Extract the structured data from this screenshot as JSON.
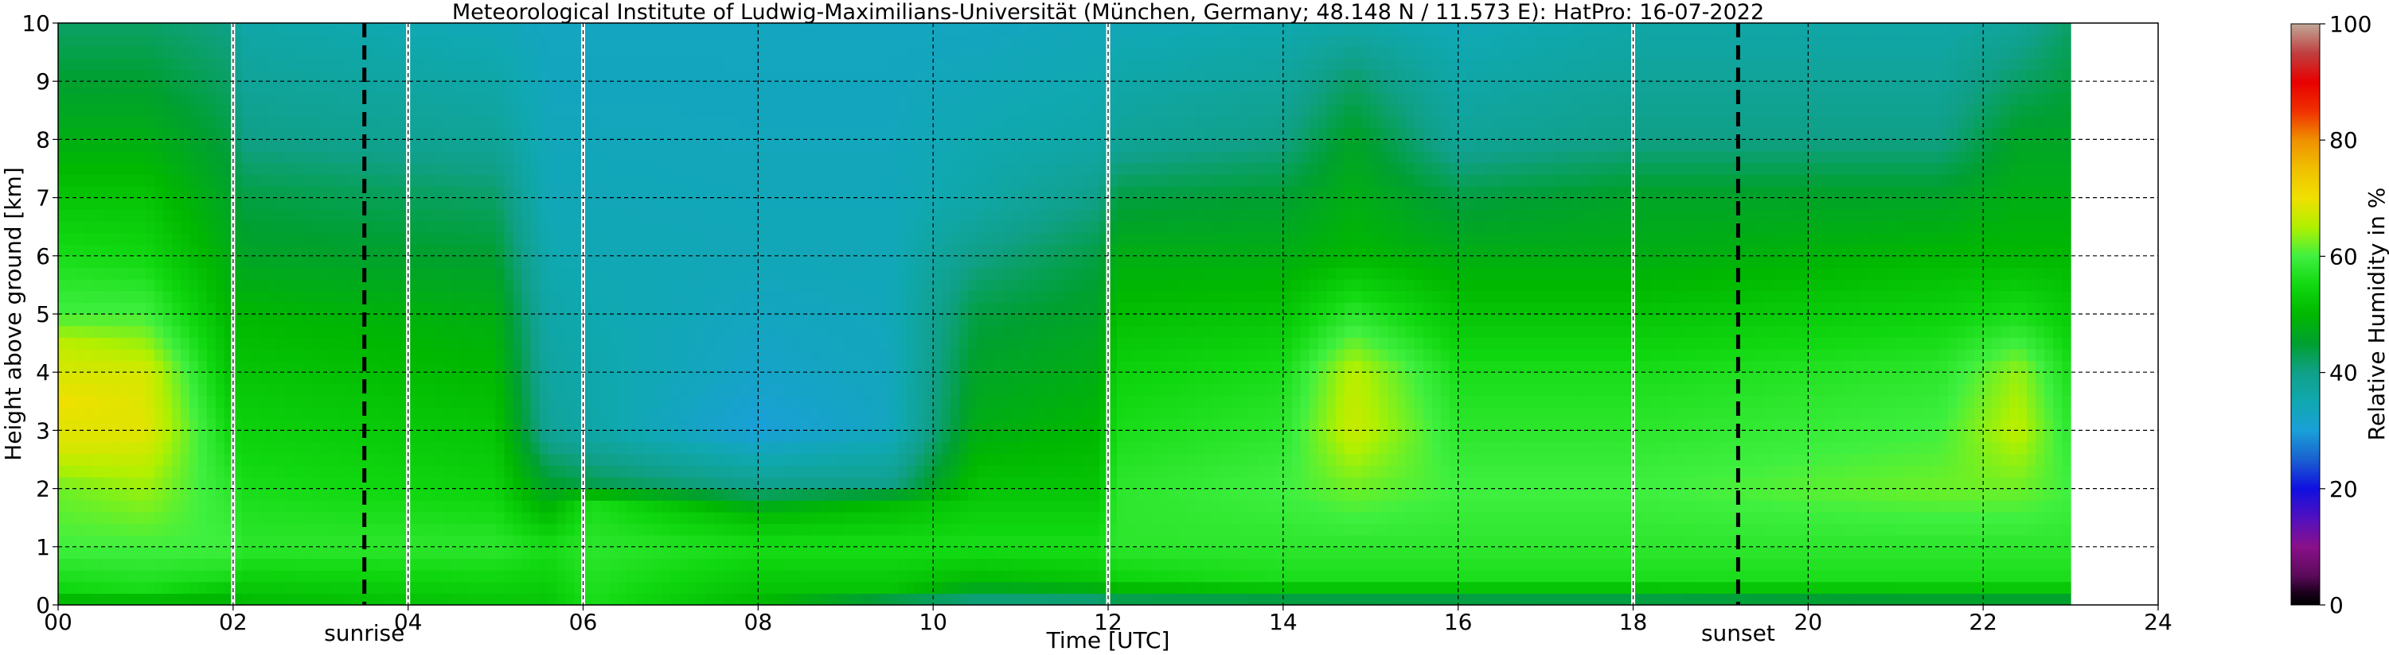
{
  "chart_data": {
    "type": "heatmap",
    "title": "Meteorological Institute of Ludwig-Maximilians-Universität (München, Germany; 48.148 N / 11.573 E):    HatPro: 16-07-2022",
    "xlabel": "Time [UTC]",
    "ylabel": "Height above ground [km]",
    "colorbar_label": "Relative Humidity in %",
    "xlim": [
      0,
      24
    ],
    "ylim": [
      0,
      10
    ],
    "x_ticks": [
      "00",
      "02",
      "04",
      "06",
      "08",
      "10",
      "12",
      "14",
      "16",
      "18",
      "20",
      "22",
      "24"
    ],
    "y_ticks": [
      "0",
      "1",
      "2",
      "3",
      "4",
      "5",
      "6",
      "7",
      "8",
      "9",
      "10"
    ],
    "colorbar_ticks": [
      "0",
      "20",
      "40",
      "60",
      "80",
      "100"
    ],
    "colorbar_range": [
      0,
      100
    ],
    "grid": true,
    "data_x_range": [
      0,
      23
    ],
    "missing_data_gaps_hours": [
      2.0,
      4.0,
      6.0,
      12.0,
      18.0
    ],
    "events": [
      {
        "label": "sunrise",
        "time_hours": 3.5
      },
      {
        "label": "sunset",
        "time_hours": 19.2
      }
    ],
    "colorbar_stops": [
      {
        "value": 0,
        "color": "#000000"
      },
      {
        "value": 2,
        "color": "#1a001a"
      },
      {
        "value": 5,
        "color": "#5a0a5a"
      },
      {
        "value": 10,
        "color": "#8a108a"
      },
      {
        "value": 15,
        "color": "#5010c0"
      },
      {
        "value": 20,
        "color": "#1010e0"
      },
      {
        "value": 25,
        "color": "#1a60d0"
      },
      {
        "value": 30,
        "color": "#1aa0d8"
      },
      {
        "value": 35,
        "color": "#10a8b0"
      },
      {
        "value": 40,
        "color": "#10a088"
      },
      {
        "value": 45,
        "color": "#00a030"
      },
      {
        "value": 50,
        "color": "#00b800"
      },
      {
        "value": 55,
        "color": "#10d810"
      },
      {
        "value": 60,
        "color": "#40f040"
      },
      {
        "value": 65,
        "color": "#b0f000"
      },
      {
        "value": 70,
        "color": "#f0e000"
      },
      {
        "value": 75,
        "color": "#f0c000"
      },
      {
        "value": 80,
        "color": "#f09000"
      },
      {
        "value": 85,
        "color": "#f03000"
      },
      {
        "value": 90,
        "color": "#e80000"
      },
      {
        "value": 95,
        "color": "#c04040"
      },
      {
        "value": 100,
        "color": "#c0a898"
      }
    ],
    "humidity_profiles": [
      {
        "x": 0.0,
        "levels": [
          {
            "h": 0,
            "rh": 48
          },
          {
            "h": 0.3,
            "rh": 55
          },
          {
            "h": 1,
            "rh": 60
          },
          {
            "h": 2,
            "rh": 62
          },
          {
            "h": 2.7,
            "rh": 68
          },
          {
            "h": 3.5,
            "rh": 70
          },
          {
            "h": 4.5,
            "rh": 66
          },
          {
            "h": 5,
            "rh": 60
          },
          {
            "h": 6,
            "rh": 56
          },
          {
            "h": 7,
            "rh": 52
          },
          {
            "h": 8,
            "rh": 48
          },
          {
            "h": 9,
            "rh": 45
          },
          {
            "h": 10,
            "rh": 42
          }
        ]
      },
      {
        "x": 1.0,
        "levels": [
          {
            "h": 0,
            "rh": 48
          },
          {
            "h": 0.3,
            "rh": 56
          },
          {
            "h": 1,
            "rh": 60
          },
          {
            "h": 2,
            "rh": 64
          },
          {
            "h": 3,
            "rh": 69
          },
          {
            "h": 4,
            "rh": 68
          },
          {
            "h": 5,
            "rh": 60
          },
          {
            "h": 6,
            "rh": 55
          },
          {
            "h": 7,
            "rh": 52
          },
          {
            "h": 8,
            "rh": 48
          },
          {
            "h": 9,
            "rh": 45
          },
          {
            "h": 10,
            "rh": 42
          }
        ]
      },
      {
        "x": 1.95,
        "levels": [
          {
            "h": 0,
            "rh": 48
          },
          {
            "h": 0.5,
            "rh": 56
          },
          {
            "h": 1,
            "rh": 60
          },
          {
            "h": 2,
            "rh": 58
          },
          {
            "h": 3,
            "rh": 55
          },
          {
            "h": 4,
            "rh": 52
          },
          {
            "h": 5,
            "rh": 50
          },
          {
            "h": 6,
            "rh": 48
          },
          {
            "h": 7,
            "rh": 46
          },
          {
            "h": 8,
            "rh": 44
          },
          {
            "h": 9,
            "rh": 42
          },
          {
            "h": 10,
            "rh": 40
          }
        ]
      },
      {
        "x": 2.1,
        "levels": [
          {
            "h": 0,
            "rh": 50
          },
          {
            "h": 1,
            "rh": 58
          },
          {
            "h": 2,
            "rh": 56
          },
          {
            "h": 4,
            "rh": 52
          },
          {
            "h": 5,
            "rh": 50
          },
          {
            "h": 6,
            "rh": 46
          },
          {
            "h": 7,
            "rh": 44
          },
          {
            "h": 8,
            "rh": 40
          },
          {
            "h": 9,
            "rh": 38
          },
          {
            "h": 10,
            "rh": 36
          }
        ]
      },
      {
        "x": 5.0,
        "levels": [
          {
            "h": 0,
            "rh": 52
          },
          {
            "h": 1,
            "rh": 58
          },
          {
            "h": 2,
            "rh": 54
          },
          {
            "h": 4,
            "rh": 50
          },
          {
            "h": 5,
            "rh": 48
          },
          {
            "h": 6,
            "rh": 45
          },
          {
            "h": 7,
            "rh": 42
          },
          {
            "h": 8,
            "rh": 38
          },
          {
            "h": 9,
            "rh": 36
          },
          {
            "h": 10,
            "rh": 34
          }
        ]
      },
      {
        "x": 5.6,
        "levels": [
          {
            "h": 0,
            "rh": 52
          },
          {
            "h": 1,
            "rh": 56
          },
          {
            "h": 2,
            "rh": 46
          },
          {
            "h": 3,
            "rh": 38
          },
          {
            "h": 5,
            "rh": 36
          },
          {
            "h": 7,
            "rh": 34
          },
          {
            "h": 10,
            "rh": 33
          }
        ]
      },
      {
        "x": 6.1,
        "levels": [
          {
            "h": 0,
            "rh": 56
          },
          {
            "h": 1,
            "rh": 58
          },
          {
            "h": 1.8,
            "rh": 56
          },
          {
            "h": 2,
            "rh": 44
          },
          {
            "h": 3,
            "rh": 36
          },
          {
            "h": 5,
            "rh": 35
          },
          {
            "h": 7,
            "rh": 34
          },
          {
            "h": 10,
            "rh": 33
          }
        ]
      },
      {
        "x": 8.0,
        "levels": [
          {
            "h": 0,
            "rh": 50
          },
          {
            "h": 1,
            "rh": 56
          },
          {
            "h": 1.6,
            "rh": 50
          },
          {
            "h": 2,
            "rh": 40
          },
          {
            "h": 3,
            "rh": 30
          },
          {
            "h": 4,
            "rh": 32
          },
          {
            "h": 6,
            "rh": 34
          },
          {
            "h": 10,
            "rh": 33
          }
        ]
      },
      {
        "x": 9.5,
        "levels": [
          {
            "h": 0,
            "rh": 40
          },
          {
            "h": 0.3,
            "rh": 52
          },
          {
            "h": 1,
            "rh": 56
          },
          {
            "h": 1.8,
            "rh": 50
          },
          {
            "h": 2,
            "rh": 40
          },
          {
            "h": 3,
            "rh": 33
          },
          {
            "h": 6,
            "rh": 34
          },
          {
            "h": 10,
            "rh": 33
          }
        ]
      },
      {
        "x": 10.5,
        "levels": [
          {
            "h": 0,
            "rh": 38
          },
          {
            "h": 0.4,
            "rh": 50
          },
          {
            "h": 1,
            "rh": 56
          },
          {
            "h": 2,
            "rh": 52
          },
          {
            "h": 3,
            "rh": 48
          },
          {
            "h": 5,
            "rh": 44
          },
          {
            "h": 6,
            "rh": 40
          },
          {
            "h": 7,
            "rh": 36
          },
          {
            "h": 10,
            "rh": 33
          }
        ]
      },
      {
        "x": 11.9,
        "levels": [
          {
            "h": 0,
            "rh": 38
          },
          {
            "h": 0.4,
            "rh": 52
          },
          {
            "h": 1,
            "rh": 56
          },
          {
            "h": 2,
            "rh": 52
          },
          {
            "h": 4,
            "rh": 48
          },
          {
            "h": 6,
            "rh": 44
          },
          {
            "h": 7,
            "rh": 40
          },
          {
            "h": 8,
            "rh": 36
          },
          {
            "h": 10,
            "rh": 34
          }
        ]
      },
      {
        "x": 12.1,
        "levels": [
          {
            "h": 0,
            "rh": 40
          },
          {
            "h": 0.4,
            "rh": 54
          },
          {
            "h": 1,
            "rh": 58
          },
          {
            "h": 2,
            "rh": 58
          },
          {
            "h": 4,
            "rh": 54
          },
          {
            "h": 6,
            "rh": 48
          },
          {
            "h": 7,
            "rh": 44
          },
          {
            "h": 8,
            "rh": 38
          },
          {
            "h": 10,
            "rh": 34
          }
        ]
      },
      {
        "x": 14.0,
        "levels": [
          {
            "h": 0,
            "rh": 40
          },
          {
            "h": 0.4,
            "rh": 56
          },
          {
            "h": 1,
            "rh": 58
          },
          {
            "h": 2,
            "rh": 60
          },
          {
            "h": 4,
            "rh": 56
          },
          {
            "h": 6,
            "rh": 48
          },
          {
            "h": 7,
            "rh": 45
          },
          {
            "h": 8,
            "rh": 40
          },
          {
            "h": 10,
            "rh": 35
          }
        ]
      },
      {
        "x": 14.8,
        "levels": [
          {
            "h": 0,
            "rh": 40
          },
          {
            "h": 0.4,
            "rh": 56
          },
          {
            "h": 1,
            "rh": 58
          },
          {
            "h": 2,
            "rh": 62
          },
          {
            "h": 3,
            "rh": 67
          },
          {
            "h": 4,
            "rh": 66
          },
          {
            "h": 5,
            "rh": 58
          },
          {
            "h": 6,
            "rh": 50
          },
          {
            "h": 7,
            "rh": 48
          },
          {
            "h": 8,
            "rh": 46
          },
          {
            "h": 9,
            "rh": 42
          },
          {
            "h": 10,
            "rh": 36
          }
        ]
      },
      {
        "x": 16.0,
        "levels": [
          {
            "h": 0,
            "rh": 40
          },
          {
            "h": 0.4,
            "rh": 56
          },
          {
            "h": 1,
            "rh": 58
          },
          {
            "h": 2,
            "rh": 60
          },
          {
            "h": 4,
            "rh": 56
          },
          {
            "h": 6,
            "rh": 48
          },
          {
            "h": 7,
            "rh": 44
          },
          {
            "h": 8,
            "rh": 38
          },
          {
            "h": 10,
            "rh": 34
          }
        ]
      },
      {
        "x": 18.1,
        "levels": [
          {
            "h": 0,
            "rh": 40
          },
          {
            "h": 0.4,
            "rh": 56
          },
          {
            "h": 1,
            "rh": 58
          },
          {
            "h": 2,
            "rh": 60
          },
          {
            "h": 4,
            "rh": 56
          },
          {
            "h": 6,
            "rh": 48
          },
          {
            "h": 7,
            "rh": 46
          },
          {
            "h": 8,
            "rh": 40
          },
          {
            "h": 10,
            "rh": 36
          }
        ]
      },
      {
        "x": 21.5,
        "levels": [
          {
            "h": 0,
            "rh": 42
          },
          {
            "h": 0.4,
            "rh": 56
          },
          {
            "h": 1,
            "rh": 58
          },
          {
            "h": 2,
            "rh": 62
          },
          {
            "h": 4,
            "rh": 58
          },
          {
            "h": 6,
            "rh": 50
          },
          {
            "h": 7,
            "rh": 46
          },
          {
            "h": 8,
            "rh": 40
          },
          {
            "h": 10,
            "rh": 36
          }
        ]
      },
      {
        "x": 22.4,
        "levels": [
          {
            "h": 0,
            "rh": 42
          },
          {
            "h": 0.4,
            "rh": 56
          },
          {
            "h": 1,
            "rh": 58
          },
          {
            "h": 2,
            "rh": 62
          },
          {
            "h": 3,
            "rh": 66
          },
          {
            "h": 4,
            "rh": 64
          },
          {
            "h": 5,
            "rh": 56
          },
          {
            "h": 6,
            "rh": 50
          },
          {
            "h": 7,
            "rh": 48
          },
          {
            "h": 8,
            "rh": 46
          },
          {
            "h": 9,
            "rh": 42
          },
          {
            "h": 10,
            "rh": 38
          }
        ]
      },
      {
        "x": 23.0,
        "levels": [
          {
            "h": 0,
            "rh": 42
          },
          {
            "h": 0.4,
            "rh": 56
          },
          {
            "h": 1,
            "rh": 58
          },
          {
            "h": 2,
            "rh": 60
          },
          {
            "h": 4,
            "rh": 56
          },
          {
            "h": 6,
            "rh": 50
          },
          {
            "h": 7,
            "rh": 48
          },
          {
            "h": 8,
            "rh": 46
          },
          {
            "h": 10,
            "rh": 42
          }
        ]
      }
    ]
  }
}
